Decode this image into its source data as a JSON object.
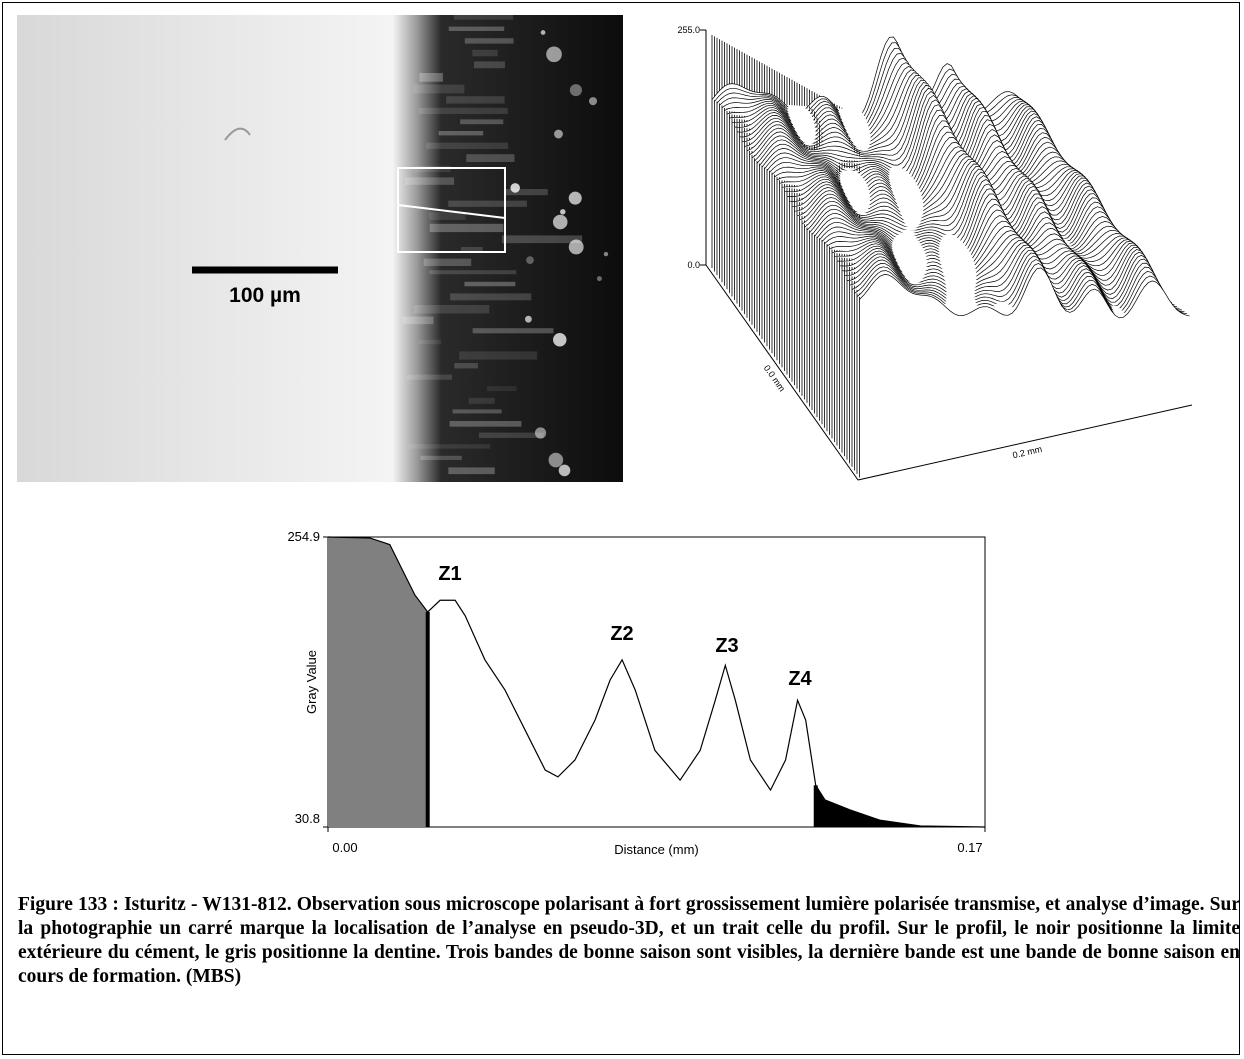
{
  "photo": {
    "scale_label": "100 µm"
  },
  "surface_plot": {
    "z_top": "255.0",
    "z_bottom": "0.0",
    "x_axis_label": "0.0 mm",
    "y_axis_label": "0.2 mm"
  },
  "chart_data": {
    "type": "line",
    "xlabel": "Distance (mm)",
    "ylabel": "Gray Value",
    "x": [
      0,
      0.0109,
      0.016,
      0.0199,
      0.0225,
      0.0258,
      0.029,
      0.0329,
      0.0355,
      0.0406,
      0.0458,
      0.051,
      0.0562,
      0.0595,
      0.0639,
      0.0691,
      0.073,
      0.0761,
      0.0795,
      0.0846,
      0.0911,
      0.0963,
      0.1002,
      0.1028,
      0.1054,
      0.1093,
      0.1145,
      0.1184,
      0.1215,
      0.1236,
      0.1262,
      0.1286,
      0.1351,
      0.1429,
      0.1533,
      0.17
    ],
    "values": [
      254.9,
      254.1,
      249,
      225.5,
      210,
      197,
      206,
      206,
      194,
      160,
      136.6,
      105.7,
      74.8,
      69.5,
      82.6,
      113.5,
      144.4,
      160,
      136.6,
      90,
      67,
      90,
      128.7,
      155.7,
      128.7,
      82.6,
      59.3,
      82.6,
      128.7,
      113.5,
      63,
      51.7,
      44,
      36,
      31.6,
      30.8
    ],
    "color": "#000000",
    "fills": [
      {
        "from": 0,
        "to": 0.0258,
        "color": "#808080"
      },
      {
        "from": 0.1262,
        "to": 0.17,
        "color": "#000000"
      }
    ],
    "xlim": [
      0,
      0.17
    ],
    "xticks": [
      {
        "value": 0,
        "label": "0.00"
      },
      0.17
    ],
    "ylim": [
      30.8,
      254.9
    ],
    "yticks": [
      30.8,
      254.9
    ],
    "annotations": [
      "Z1",
      "Z2",
      "Z3",
      "Z4"
    ]
  },
  "caption": "Figure 133 : Isturitz - W131-812. Observation sous microscope polarisant à fort grossissement lumière polarisée transmise, et analyse d’image. Sur la photographie un carré marque la localisation de l’analyse en pseudo-3D, et un trait celle du profil. Sur le profil, le noir positionne la limite extérieure du cément, le gris positionne la dentine. Trois bandes de bonne saison sont visibles, la dernière bande est une bande de bonne saison en cours de formation. (MBS)"
}
